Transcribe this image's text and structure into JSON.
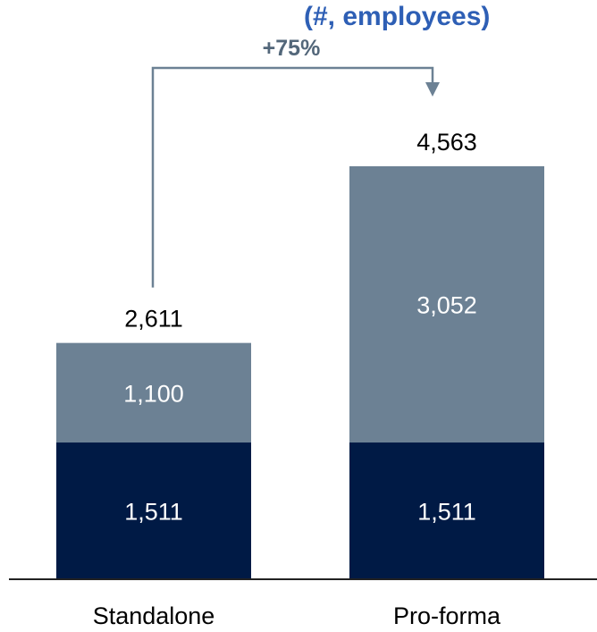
{
  "colors": {
    "base": "#001a45",
    "top": "#6c8194",
    "connector": "#6c8194",
    "growth_text": "#53677a",
    "title": "#2e5fb5",
    "axis": "#222222"
  },
  "title_fragment": "(#, employees)",
  "chart_data": {
    "type": "bar",
    "stacked": true,
    "categories": [
      "Standalone",
      "Pro-forma"
    ],
    "series": [
      {
        "values": [
          1511,
          1511
        ]
      },
      {
        "values": [
          1100,
          3052
        ]
      }
    ],
    "totals": [
      "2,611",
      "4,563"
    ],
    "segment_labels": [
      [
        "1,511",
        "1,511"
      ],
      [
        "1,100",
        "3,052"
      ]
    ],
    "annotation": {
      "text": "+75%",
      "from": "Standalone",
      "to": "Pro-forma"
    },
    "ylim": [
      0,
      5300
    ],
    "grid": false,
    "legend": "none"
  }
}
